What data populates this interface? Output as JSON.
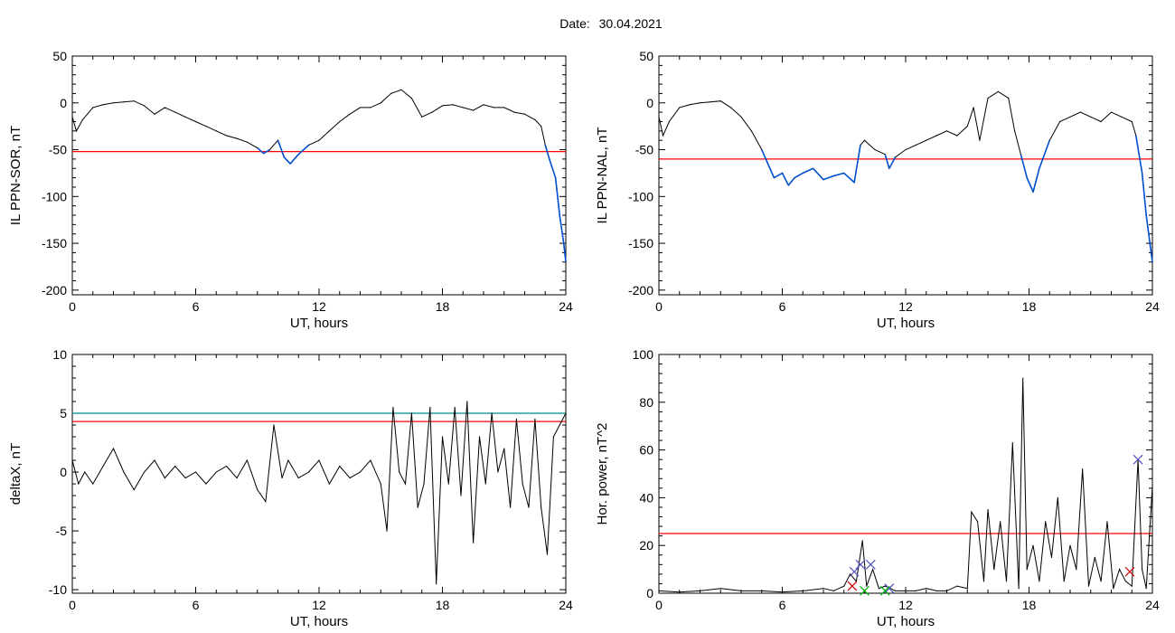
{
  "header": {
    "date_label": "Date:",
    "date_value": "30.04.2021"
  },
  "colors": {
    "axis": "#000000",
    "trace": "#000000",
    "threshold": "#ff0000",
    "threshold2": "#008b8b",
    "highlight": "#0050d0",
    "marker_x": "#5050c0",
    "marker_g": "#00b000",
    "marker_r": "#d00000"
  },
  "chart_data": [
    {
      "type": "line",
      "id": "sor",
      "xlabel": "UT, hours",
      "ylabel": "IL PPN-SOR, nT",
      "xlim": [
        0,
        24
      ],
      "ylim": [
        -205,
        50
      ],
      "xticks": [
        0,
        6,
        12,
        18,
        24
      ],
      "yticks": [
        50,
        0,
        -50,
        -100,
        -150,
        -200
      ],
      "threshold": -52,
      "highlight_below_threshold": true,
      "series": [
        {
          "x": [
            0,
            0.2,
            0.5,
            1,
            1.5,
            2,
            2.5,
            3,
            3.5,
            4,
            4.5,
            5,
            5.5,
            6,
            6.5,
            7,
            7.5,
            8,
            8.5,
            9,
            9.3,
            9.6,
            10,
            10.3,
            10.6,
            11,
            11.5,
            12,
            12.5,
            13,
            13.5,
            14,
            14.5,
            15,
            15.5,
            16,
            16.5,
            17,
            17.5,
            18,
            18.5,
            19,
            19.5,
            20,
            20.5,
            21,
            21.5,
            22,
            22.5,
            22.8,
            23,
            23.2,
            23.5,
            23.7,
            23.9,
            24
          ],
          "y": [
            -15,
            -30,
            -18,
            -5,
            -2,
            0,
            1,
            2,
            -3,
            -12,
            -5,
            -10,
            -15,
            -20,
            -25,
            -30,
            -35,
            -38,
            -42,
            -48,
            -54,
            -50,
            -40,
            -58,
            -65,
            -55,
            -45,
            -40,
            -30,
            -20,
            -12,
            -5,
            -5,
            0,
            10,
            14,
            5,
            -15,
            -10,
            -3,
            -2,
            -5,
            -8,
            -2,
            -5,
            -5,
            -10,
            -12,
            -18,
            -25,
            -45,
            -60,
            -80,
            -120,
            -150,
            -170
          ]
        }
      ]
    },
    {
      "type": "line",
      "id": "nal",
      "xlabel": "UT, hours",
      "ylabel": "IL PPN-NAL, nT",
      "xlim": [
        0,
        24
      ],
      "ylim": [
        -205,
        50
      ],
      "xticks": [
        0,
        6,
        12,
        18,
        24
      ],
      "yticks": [
        50,
        0,
        -50,
        -100,
        -150,
        -200
      ],
      "threshold": -60,
      "highlight_below_threshold": true,
      "series": [
        {
          "x": [
            0,
            0.2,
            0.5,
            1,
            1.5,
            2,
            2.5,
            3,
            3.5,
            4,
            4.5,
            5,
            5.3,
            5.6,
            6,
            6.3,
            6.6,
            7,
            7.5,
            8,
            8.5,
            9,
            9.5,
            9.8,
            10,
            10.5,
            11,
            11.2,
            11.5,
            12,
            12.5,
            13,
            13.5,
            14,
            14.5,
            15,
            15.3,
            15.6,
            16,
            16.5,
            17,
            17.3,
            17.6,
            17.9,
            18.2,
            18.5,
            19,
            19.5,
            20,
            20.5,
            21,
            21.5,
            22,
            22.5,
            23,
            23.2,
            23.5,
            23.7,
            24
          ],
          "y": [
            -15,
            -35,
            -20,
            -5,
            -2,
            0,
            1,
            2,
            -5,
            -15,
            -30,
            -50,
            -65,
            -80,
            -75,
            -88,
            -80,
            -75,
            -70,
            -82,
            -78,
            -75,
            -85,
            -45,
            -40,
            -50,
            -55,
            -70,
            -58,
            -50,
            -45,
            -40,
            -35,
            -30,
            -35,
            -25,
            -5,
            -40,
            5,
            12,
            5,
            -30,
            -55,
            -80,
            -95,
            -70,
            -40,
            -20,
            -15,
            -10,
            -15,
            -20,
            -10,
            -15,
            -20,
            -35,
            -75,
            -120,
            -170
          ]
        }
      ]
    },
    {
      "type": "line",
      "id": "deltax",
      "xlabel": "UT, hours",
      "ylabel": "deltaX, nT",
      "xlim": [
        0,
        24
      ],
      "ylim": [
        -10.3,
        10
      ],
      "xticks": [
        0,
        6,
        12,
        18,
        24
      ],
      "yticks": [
        10,
        5,
        0,
        -5,
        -10
      ],
      "threshold": 4.3,
      "threshold2": 5.0,
      "series": [
        {
          "x": [
            0,
            0.3,
            0.6,
            1,
            1.5,
            2,
            2.5,
            3,
            3.5,
            4,
            4.5,
            5,
            5.5,
            6,
            6.5,
            7,
            7.5,
            8,
            8.5,
            9,
            9.4,
            9.8,
            10.2,
            10.5,
            11,
            11.5,
            12,
            12.5,
            13,
            13.5,
            14,
            14.5,
            15,
            15.3,
            15.6,
            15.9,
            16.2,
            16.5,
            16.8,
            17.1,
            17.4,
            17.7,
            18,
            18.3,
            18.6,
            18.9,
            19.2,
            19.5,
            19.8,
            20.1,
            20.4,
            20.7,
            21,
            21.3,
            21.6,
            21.9,
            22.2,
            22.5,
            22.8,
            23.1,
            23.4,
            23.7,
            24
          ],
          "y": [
            1,
            -1,
            0,
            -1,
            0.5,
            2,
            0,
            -1.5,
            0,
            1,
            -0.5,
            0.5,
            -0.5,
            0,
            -1,
            0,
            0.5,
            -0.5,
            1,
            -1.5,
            -2.5,
            4,
            -0.5,
            1,
            -0.5,
            0,
            1,
            -1,
            0.5,
            -0.5,
            0,
            1,
            -1,
            -5,
            5.5,
            0,
            -1,
            5,
            -3,
            -1,
            5.5,
            -9.5,
            3,
            -1,
            5.5,
            -2,
            6,
            -6,
            3,
            -1,
            5,
            0,
            2,
            -3,
            4.5,
            -1,
            -3,
            4.5,
            -3,
            -7,
            3,
            4,
            5
          ]
        }
      ]
    },
    {
      "type": "line",
      "id": "power",
      "xlabel": "UT, hours",
      "ylabel": "Hor. power, nT^2",
      "xlim": [
        0,
        24
      ],
      "ylim": [
        0,
        100
      ],
      "xticks": [
        0,
        6,
        12,
        18,
        24
      ],
      "yticks": [
        100,
        80,
        60,
        40,
        20,
        0
      ],
      "ytick_labels": [
        "100",
        "80",
        "60",
        "40",
        "20",
        "0"
      ],
      "threshold": 25,
      "markers": [
        {
          "x": 9.5,
          "y": 9,
          "kind": "x"
        },
        {
          "x": 9.8,
          "y": 12,
          "kind": "x"
        },
        {
          "x": 10.3,
          "y": 12,
          "kind": "x"
        },
        {
          "x": 11.2,
          "y": 2,
          "kind": "x"
        },
        {
          "x": 23.3,
          "y": 56,
          "kind": "x"
        },
        {
          "x": 10,
          "y": 1,
          "kind": "g"
        },
        {
          "x": 11,
          "y": 1,
          "kind": "g"
        },
        {
          "x": 9.4,
          "y": 3,
          "kind": "r"
        },
        {
          "x": 22.9,
          "y": 9,
          "kind": "r"
        }
      ],
      "series": [
        {
          "x": [
            0,
            1,
            2,
            3,
            4,
            5,
            6,
            7,
            8,
            8.5,
            9,
            9.3,
            9.6,
            9.9,
            10.1,
            10.4,
            10.7,
            11,
            11.5,
            12,
            12.5,
            13,
            13.5,
            14,
            14.5,
            15,
            15.2,
            15.5,
            15.8,
            16,
            16.3,
            16.6,
            16.9,
            17.2,
            17.5,
            17.7,
            17.9,
            18.2,
            18.5,
            18.8,
            19.1,
            19.4,
            19.7,
            20,
            20.3,
            20.6,
            20.9,
            21.2,
            21.5,
            21.8,
            22.1,
            22.4,
            22.7,
            23,
            23.3,
            23.5,
            23.7,
            24
          ],
          "y": [
            1,
            0.5,
            1,
            2,
            1,
            1,
            0.5,
            1,
            2,
            1,
            3,
            8,
            5,
            22,
            3,
            10,
            2,
            3,
            1,
            1,
            1,
            2,
            1,
            1,
            3,
            2,
            34,
            30,
            5,
            35,
            10,
            30,
            5,
            63,
            2,
            90,
            10,
            20,
            5,
            30,
            15,
            40,
            5,
            20,
            10,
            52,
            3,
            15,
            5,
            30,
            2,
            10,
            5,
            3,
            56,
            10,
            2,
            45
          ]
        }
      ]
    }
  ]
}
